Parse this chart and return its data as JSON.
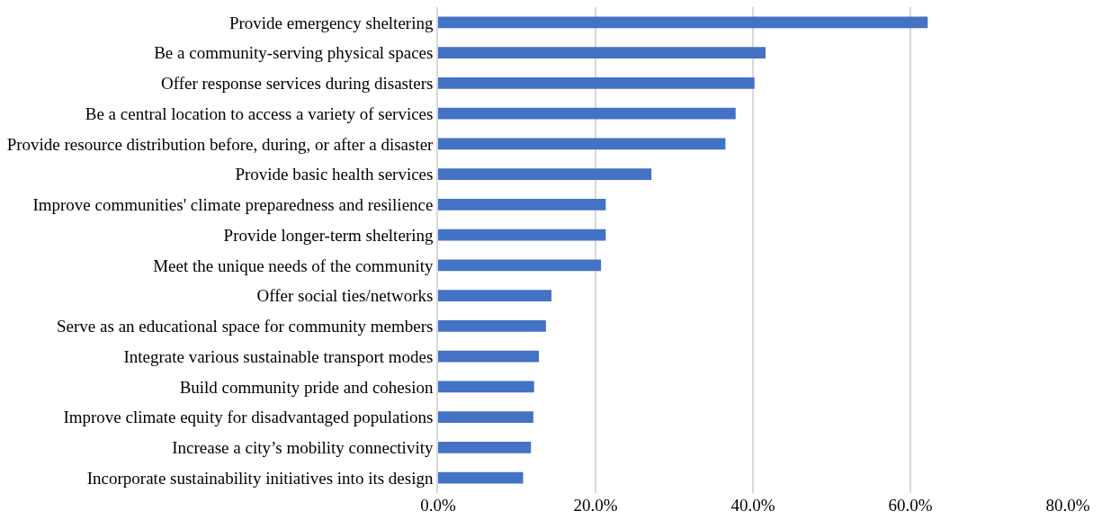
{
  "chart_data": {
    "type": "bar",
    "orientation": "horizontal",
    "categories": [
      "Provide emergency sheltering",
      "Be a community-serving physical spaces",
      "Offer response services during disasters",
      "Be a central location to access a variety of services",
      "Provide resource distribution before, during, or after a disaster",
      "Provide basic health services",
      "Improve communities' climate preparedness and resilience",
      "Provide longer-term sheltering",
      "Meet the unique needs of the community",
      "Offer social ties/networks",
      "Serve as an educational space for community members",
      "Integrate various sustainable transport modes",
      "Build community pride and cohesion",
      "Improve climate equity for disadvantaged populations",
      "Increase a city’s mobility connectivity",
      "Incorporate sustainability initiatives into its design"
    ],
    "values": [
      62.2,
      41.6,
      40.2,
      37.8,
      36.5,
      27.1,
      21.3,
      21.3,
      20.7,
      14.4,
      13.7,
      12.8,
      12.2,
      12.1,
      11.8,
      10.8
    ],
    "color": "#4472c4",
    "xlim": [
      0,
      80
    ],
    "xticks": [
      {
        "value": 0,
        "label": "0.0%"
      },
      {
        "value": 20,
        "label": "20.0%"
      },
      {
        "value": 40,
        "label": "40.0%"
      },
      {
        "value": 60,
        "label": "60.0%"
      },
      {
        "value": 80,
        "label": "80.0%"
      }
    ],
    "grid": "x"
  }
}
